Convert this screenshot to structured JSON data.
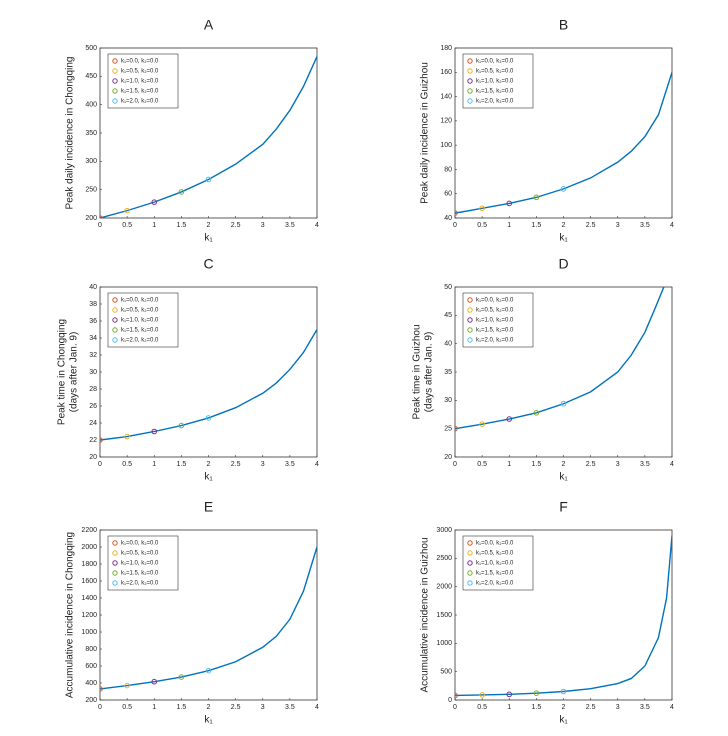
{
  "chart_data": [
    {
      "type": "line",
      "title": "A",
      "xlabel": "k₁",
      "ylabel": [
        "Peak daily incidence in Chongqing"
      ],
      "legend": "upper left",
      "xlim": [
        0,
        4
      ],
      "ylim": [
        200,
        500
      ],
      "xticks": [
        0,
        0.5,
        1,
        1.5,
        2,
        2.5,
        3,
        3.5,
        4
      ],
      "yticks": [
        200,
        250,
        300,
        350,
        400,
        450,
        500
      ],
      "series": [
        {
          "color": "#0072bd",
          "x": [
            0,
            0.5,
            1,
            1.5,
            2,
            2.5,
            3,
            3.25,
            3.5,
            3.75,
            4
          ],
          "values": [
            200,
            213,
            228,
            246,
            268,
            295,
            330,
            357,
            390,
            432,
            485
          ]
        },
        {
          "name": "k₁=0.0, k₂=0.0",
          "color": "#d95319",
          "marker": "o",
          "x": [
            0
          ],
          "values": [
            200
          ]
        },
        {
          "name": "k₁=0.5, k₂=0.0",
          "color": "#edb120",
          "marker": "o",
          "x": [
            0.5
          ],
          "values": [
            213
          ]
        },
        {
          "name": "k₁=1.0, k₂=0.0",
          "color": "#7e2f8e",
          "marker": "o",
          "x": [
            1
          ],
          "values": [
            228
          ]
        },
        {
          "name": "k₁=1.5, k₂=0.0",
          "color": "#77ac30",
          "marker": "o",
          "x": [
            1.5
          ],
          "values": [
            246
          ]
        },
        {
          "name": "k₁=2.0, k₂=0.0",
          "color": "#4dbeee",
          "marker": "o",
          "x": [
            2
          ],
          "values": [
            268
          ]
        }
      ]
    },
    {
      "type": "line",
      "title": "B",
      "xlabel": "k₁",
      "ylabel": [
        "Peak daily incidence in Guizhou"
      ],
      "legend": "upper left",
      "xlim": [
        0,
        4
      ],
      "ylim": [
        40,
        180
      ],
      "xticks": [
        0,
        0.5,
        1,
        1.5,
        2,
        2.5,
        3,
        3.5,
        4
      ],
      "yticks": [
        40,
        60,
        80,
        100,
        120,
        140,
        160,
        180
      ],
      "series": [
        {
          "color": "#0072bd",
          "x": [
            0,
            0.5,
            1,
            1.5,
            2,
            2.5,
            3,
            3.25,
            3.5,
            3.75,
            4
          ],
          "values": [
            44,
            48,
            52,
            57,
            64,
            73,
            86,
            95,
            107,
            125,
            160
          ]
        },
        {
          "name": "k₁=0.0, k₂=0.0",
          "color": "#d95319",
          "marker": "o",
          "x": [
            0
          ],
          "values": [
            44
          ]
        },
        {
          "name": "k₁=0.5, k₂=0.0",
          "color": "#edb120",
          "marker": "o",
          "x": [
            0.5
          ],
          "values": [
            48
          ]
        },
        {
          "name": "k₁=1.0, k₂=0.0",
          "color": "#7e2f8e",
          "marker": "o",
          "x": [
            1
          ],
          "values": [
            52
          ]
        },
        {
          "name": "k₁=1.5, k₂=0.0",
          "color": "#77ac30",
          "marker": "o",
          "x": [
            1.5
          ],
          "values": [
            57
          ]
        },
        {
          "name": "k₁=2.0, k₂=0.0",
          "color": "#4dbeee",
          "marker": "o",
          "x": [
            2
          ],
          "values": [
            64
          ]
        }
      ]
    },
    {
      "type": "line",
      "title": "C",
      "xlabel": "k₁",
      "ylabel": [
        "Peak time in Chongqing",
        "(days after Jan. 9)"
      ],
      "legend": "upper left",
      "xlim": [
        0,
        4
      ],
      "ylim": [
        20,
        40
      ],
      "xticks": [
        0,
        0.5,
        1,
        1.5,
        2,
        2.5,
        3,
        3.5,
        4
      ],
      "yticks": [
        20,
        22,
        24,
        26,
        28,
        30,
        32,
        34,
        36,
        38,
        40
      ],
      "series": [
        {
          "color": "#0072bd",
          "x": [
            0,
            0.5,
            1,
            1.5,
            2,
            2.5,
            3,
            3.25,
            3.5,
            3.75,
            4
          ],
          "values": [
            22,
            22.4,
            23,
            23.7,
            24.6,
            25.8,
            27.5,
            28.7,
            30.3,
            32.3,
            35
          ]
        },
        {
          "name": "k₁=0.0, k₂=0.0",
          "color": "#d95319",
          "marker": "o",
          "x": [
            0
          ],
          "values": [
            22
          ]
        },
        {
          "name": "k₁=0.5, k₂=0.0",
          "color": "#edb120",
          "marker": "o",
          "x": [
            0.5
          ],
          "values": [
            22.4
          ]
        },
        {
          "name": "k₁=1.0, k₂=0.0",
          "color": "#7e2f8e",
          "marker": "o",
          "x": [
            1
          ],
          "values": [
            23
          ]
        },
        {
          "name": "k₁=1.5, k₂=0.0",
          "color": "#77ac30",
          "marker": "o",
          "x": [
            1.5
          ],
          "values": [
            23.7
          ]
        },
        {
          "name": "k₁=2.0, k₂=0.0",
          "color": "#4dbeee",
          "marker": "o",
          "x": [
            2
          ],
          "values": [
            24.6
          ]
        }
      ]
    },
    {
      "type": "line",
      "title": "D",
      "xlabel": "k₁",
      "ylabel": [
        "Peak time in Guizhou",
        "(days after Jan. 9)"
      ],
      "legend": "upper left",
      "xlim": [
        0,
        4
      ],
      "ylim": [
        20,
        50
      ],
      "xticks": [
        0,
        0.5,
        1,
        1.5,
        2,
        2.5,
        3,
        3.5,
        4
      ],
      "yticks": [
        20,
        25,
        30,
        35,
        40,
        45,
        50
      ],
      "series": [
        {
          "color": "#0072bd",
          "x": [
            0,
            0.5,
            1,
            1.5,
            2,
            2.5,
            3,
            3.25,
            3.5,
            3.7,
            3.85
          ],
          "values": [
            25,
            25.8,
            26.7,
            27.8,
            29.4,
            31.5,
            35,
            38,
            42,
            46.5,
            50
          ]
        },
        {
          "name": "k₁=0.0, k₂=0.0",
          "color": "#d95319",
          "marker": "o",
          "x": [
            0
          ],
          "values": [
            25
          ]
        },
        {
          "name": "k₁=0.5, k₂=0.0",
          "color": "#edb120",
          "marker": "o",
          "x": [
            0.5
          ],
          "values": [
            25.8
          ]
        },
        {
          "name": "k₁=1.0, k₂=0.0",
          "color": "#7e2f8e",
          "marker": "o",
          "x": [
            1
          ],
          "values": [
            26.7
          ]
        },
        {
          "name": "k₁=1.5, k₂=0.0",
          "color": "#77ac30",
          "marker": "o",
          "x": [
            1.5
          ],
          "values": [
            27.8
          ]
        },
        {
          "name": "k₁=2.0, k₂=0.0",
          "color": "#4dbeee",
          "marker": "o",
          "x": [
            2
          ],
          "values": [
            29.4
          ]
        }
      ]
    },
    {
      "type": "line",
      "title": "E",
      "xlabel": "k₁",
      "ylabel": [
        "Accumulative incidence in Chongqing"
      ],
      "legend": "upper left",
      "xlim": [
        0,
        4
      ],
      "ylim": [
        200,
        2200
      ],
      "xticks": [
        0,
        0.5,
        1,
        1.5,
        2,
        2.5,
        3,
        3.5,
        4
      ],
      "yticks": [
        200,
        400,
        600,
        800,
        1000,
        1200,
        1400,
        1600,
        1800,
        2000,
        2200
      ],
      "series": [
        {
          "color": "#0072bd",
          "x": [
            0,
            0.5,
            1,
            1.5,
            2,
            2.5,
            3,
            3.25,
            3.5,
            3.75,
            4
          ],
          "values": [
            330,
            370,
            415,
            470,
            545,
            650,
            820,
            950,
            1150,
            1480,
            2000
          ]
        },
        {
          "name": "k₁=0.0, k₂=0.0",
          "color": "#d95319",
          "marker": "o",
          "x": [
            0
          ],
          "values": [
            330
          ]
        },
        {
          "name": "k₁=0.5, k₂=0.0",
          "color": "#edb120",
          "marker": "o",
          "x": [
            0.5
          ],
          "values": [
            370
          ]
        },
        {
          "name": "k₁=1.0, k₂=0.0",
          "color": "#7e2f8e",
          "marker": "o",
          "x": [
            1
          ],
          "values": [
            415
          ]
        },
        {
          "name": "k₁=1.5, k₂=0.0",
          "color": "#77ac30",
          "marker": "o",
          "x": [
            1.5
          ],
          "values": [
            470
          ]
        },
        {
          "name": "k₁=2.0, k₂=0.0",
          "color": "#4dbeee",
          "marker": "o",
          "x": [
            2
          ],
          "values": [
            545
          ]
        }
      ]
    },
    {
      "type": "line",
      "title": "F",
      "xlabel": "k₁",
      "ylabel": [
        "Accumulative incidence in Guizhou"
      ],
      "legend": "upper left",
      "xlim": [
        0,
        4
      ],
      "ylim": [
        0,
        3000
      ],
      "xticks": [
        0,
        0.5,
        1,
        1.5,
        2,
        2.5,
        3,
        3.5,
        4
      ],
      "yticks": [
        0,
        500,
        1000,
        1500,
        2000,
        2500,
        3000
      ],
      "series": [
        {
          "color": "#0072bd",
          "x": [
            0,
            0.5,
            1,
            1.5,
            2,
            2.5,
            3,
            3.25,
            3.5,
            3.75,
            3.9,
            4
          ],
          "values": [
            80,
            90,
            100,
            120,
            150,
            200,
            290,
            380,
            600,
            1100,
            1800,
            2900
          ]
        },
        {
          "name": "k₁=0.0, k₂=0.0",
          "color": "#d95319",
          "marker": "o",
          "x": [
            0
          ],
          "values": [
            80
          ]
        },
        {
          "name": "k₁=0.5, k₂=0.0",
          "color": "#edb120",
          "marker": "o",
          "x": [
            0.5
          ],
          "values": [
            90
          ]
        },
        {
          "name": "k₁=1.0, k₂=0.0",
          "color": "#7e2f8e",
          "marker": "o",
          "x": [
            1
          ],
          "values": [
            100
          ]
        },
        {
          "name": "k₁=1.5, k₂=0.0",
          "color": "#77ac30",
          "marker": "o",
          "x": [
            1.5
          ],
          "values": [
            120
          ]
        },
        {
          "name": "k₁=2.0, k₂=0.0",
          "color": "#4dbeee",
          "marker": "o",
          "x": [
            2
          ],
          "values": [
            150
          ]
        }
      ]
    }
  ]
}
